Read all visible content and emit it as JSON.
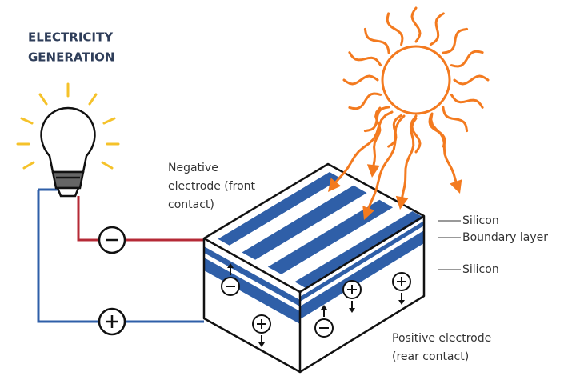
{
  "title": [
    "ELECTRICITY",
    "GENERATION"
  ],
  "labels": {
    "negative_electrode": [
      "Negative",
      "electrode (front",
      "contact)"
    ],
    "silicon_top": "Silicon",
    "boundary_layer": "Boundary layer",
    "silicon_bottom": "Silicon",
    "positive_electrode": [
      "Positive electrode",
      "(rear contact)"
    ]
  }
}
